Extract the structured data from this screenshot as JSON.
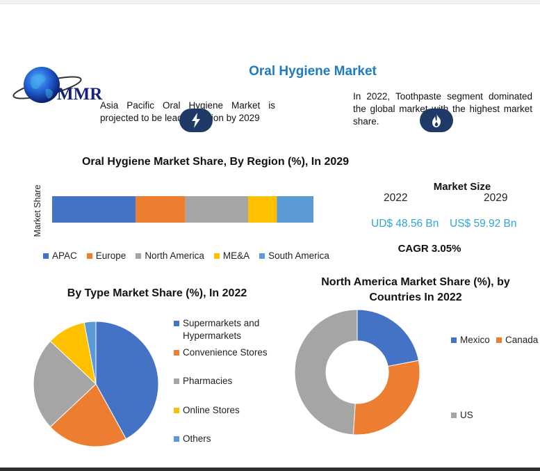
{
  "header": {
    "title": "Oral Hygiene Market",
    "logo_text": "MMR"
  },
  "notes": {
    "left": "Asia Pacific Oral Hygiene Market is projected to be leading region by 2029",
    "right": "In 2022, Toothpaste segment dominated the global market with the highest market share.",
    "left_icon": "lightning-bolt-icon",
    "right_icon": "flame-icon"
  },
  "market_size": {
    "title": "Market Size",
    "year_start": "2022",
    "year_end": "2029",
    "value_start": "UD$ 48.56 Bn",
    "value_end": "US$ 59.92 Bn",
    "cagr": "CAGR 3.05%"
  },
  "colors": {
    "blue": "#4472c4",
    "orange": "#ed7d31",
    "gray": "#a5a5a5",
    "yellow": "#ffc000",
    "light_blue": "#5b9bd5",
    "title_blue": "#1f7bc1",
    "value_cyan": "#2fa6d6"
  },
  "chart_data": [
    {
      "type": "bar",
      "orientation": "horizontal-stacked",
      "title": "Oral Hygiene Market Share, By Region (%), In 2029",
      "ylabel": "Market Share",
      "xlim": [
        0,
        100
      ],
      "series": [
        {
          "name": "APAC",
          "values": [
            32
          ],
          "color": "#4472c4"
        },
        {
          "name": "Europe",
          "values": [
            19
          ],
          "color": "#ed7d31"
        },
        {
          "name": "North America",
          "values": [
            24
          ],
          "color": "#a5a5a5"
        },
        {
          "name": "ME&A",
          "values": [
            11
          ],
          "color": "#ffc000"
        },
        {
          "name": "South America",
          "values": [
            14
          ],
          "color": "#5b9bd5"
        }
      ],
      "legend": "bottom"
    },
    {
      "type": "pie",
      "title": "By Type Market Share (%), In 2022",
      "categories": [
        "Supermarkets and Hypermarkets",
        "Convenience Stores",
        "Pharmacies",
        "Online Stores",
        "Others"
      ],
      "values": [
        42,
        21,
        24,
        10,
        3
      ],
      "colors": [
        "#4472c4",
        "#ed7d31",
        "#a5a5a5",
        "#ffc000",
        "#5b9bd5"
      ],
      "legend": "right"
    },
    {
      "type": "pie",
      "variant": "donut",
      "title": "North America Market Share (%), by Countries In 2022",
      "categories": [
        "Mexico",
        "Canada",
        "US"
      ],
      "values": [
        22,
        29,
        49
      ],
      "colors": [
        "#4472c4",
        "#ed7d31",
        "#a5a5a5"
      ],
      "legend": "right"
    }
  ]
}
